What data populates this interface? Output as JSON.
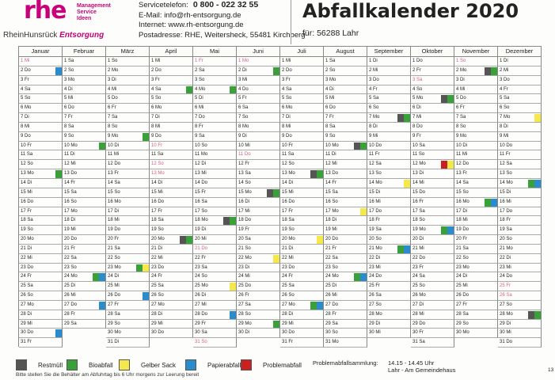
{
  "header": {
    "logo_text": "rhe",
    "logo_sub": [
      "Management",
      "Service",
      "Ideen"
    ],
    "logo_name_plain": "RheinHunsrück ",
    "logo_name_italic": "Entsorgung",
    "tel_label": "Servicetelefon:",
    "tel_number": "0 800 - 022 32 55",
    "email": "E-Mail: info@rh-entsorgung.de",
    "web": "Internet: www.rh-entsorgung.de",
    "address": "Postadresse: RHE, Weitersheck, 55481 Kirchberg",
    "title": "Abfallkalender  2020",
    "for_label": "für:  56288 Lahr"
  },
  "months": [
    {
      "name": "Januar",
      "days": [
        "1 Mi",
        "2 Do",
        "3 Fr",
        "4 Sa",
        "5 So",
        "6 Mo",
        "7 Di",
        "8 Mi",
        "9 Do",
        "10 Fr",
        "11 Sa",
        "12 So",
        "13 Mo",
        "14 Di",
        "15 Mi",
        "16 Do",
        "17 Fr",
        "18 Sa",
        "19 So",
        "20 Mo",
        "21 Di",
        "22 Mi",
        "23 Do",
        "24 Fr",
        "25 Sa",
        "26 So",
        "27 Mo",
        "28 Di",
        "29 Mi",
        "30 Do",
        "31 Fr"
      ]
    },
    {
      "name": "Februar",
      "days": [
        "1 Sa",
        "2 So",
        "3 Mo",
        "4 Di",
        "5 Mi",
        "6 Do",
        "7 Fr",
        "8 Sa",
        "9 So",
        "10 Mo",
        "11 Di",
        "12 Mi",
        "13 Do",
        "14 Fr",
        "15 Sa",
        "16 So",
        "17 Mo",
        "18 Di",
        "19 Mi",
        "20 Do",
        "21 Fr",
        "22 Sa",
        "23 So",
        "24 Mo",
        "25 Di",
        "26 Mi",
        "27 Do",
        "28 Fr",
        "29 Sa"
      ]
    },
    {
      "name": "März",
      "days": [
        "1 So",
        "2 Mo",
        "3 Di",
        "4 Mi",
        "5 Do",
        "6 Fr",
        "7 Sa",
        "8 So",
        "9 Mo",
        "10 Di",
        "11 Mi",
        "12 Do",
        "13 Fr",
        "14 Sa",
        "15 So",
        "16 Mo",
        "17 Di",
        "18 Mi",
        "19 Do",
        "20 Fr",
        "21 Sa",
        "22 So",
        "23 Mo",
        "24 Di",
        "25 Mi",
        "26 Do",
        "27 Fr",
        "28 Sa",
        "29 So",
        "30 Mo",
        "31 Di"
      ]
    },
    {
      "name": "April",
      "days": [
        "1 Mi",
        "2 Do",
        "3 Fr",
        "4 Sa",
        "5 So",
        "6 Mo",
        "7 Di",
        "8 Mi",
        "9 Do",
        "10 Fr",
        "11 Sa",
        "12 So",
        "13 Mo",
        "14 Di",
        "15 Mi",
        "16 Do",
        "17 Fr",
        "18 Sa",
        "19 So",
        "20 Mo",
        "21 Di",
        "22 Mi",
        "23 Do",
        "24 Fr",
        "25 Sa",
        "26 So",
        "27 Mo",
        "28 Di",
        "29 Mi",
        "30 Do"
      ]
    },
    {
      "name": "Mai",
      "days": [
        "1 Fr",
        "2 Sa",
        "3 So",
        "4 Mo",
        "5 Di",
        "6 Mi",
        "7 Do",
        "8 Fr",
        "9 Sa",
        "10 So",
        "11 Mo",
        "12 Di",
        "13 Mi",
        "14 Do",
        "15 Fr",
        "16 Sa",
        "17 So",
        "18 Mo",
        "19 Di",
        "20 Mi",
        "21 Do",
        "22 Fr",
        "23 Sa",
        "24 So",
        "25 Mo",
        "26 Di",
        "27 Mi",
        "28 Do",
        "29 Fr",
        "30 Sa",
        "31 So"
      ]
    },
    {
      "name": "Juni",
      "days": [
        "1 Mo",
        "2 Di",
        "3 Mi",
        "4 Do",
        "5 Fr",
        "6 Sa",
        "7 So",
        "8 Mo",
        "9 Di",
        "10 Mi",
        "11 Do",
        "12 Fr",
        "13 Sa",
        "14 So",
        "15 Mo",
        "16 Di",
        "17 Mi",
        "18 Do",
        "19 Fr",
        "20 Sa",
        "21 So",
        "22 Mo",
        "23 Di",
        "24 Mi",
        "25 Do",
        "26 Fr",
        "27 Sa",
        "28 So",
        "29 Mo",
        "30 Di"
      ]
    },
    {
      "name": "Juli",
      "days": [
        "1 Mi",
        "2 Do",
        "3 Fr",
        "4 Sa",
        "5 So",
        "6 Mo",
        "7 Di",
        "8 Mi",
        "9 Do",
        "10 Fr",
        "11 Sa",
        "12 So",
        "13 Mo",
        "14 Di",
        "15 Mi",
        "16 Do",
        "17 Fr",
        "18 Sa",
        "19 So",
        "20 Mo",
        "21 Di",
        "22 Mi",
        "23 Do",
        "24 Fr",
        "25 Sa",
        "26 So",
        "27 Mo",
        "28 Di",
        "29 Mi",
        "30 Do",
        "31 Fr"
      ]
    },
    {
      "name": "August",
      "days": [
        "1 Sa",
        "2 So",
        "3 Mo",
        "4 Di",
        "5 Mi",
        "6 Do",
        "7 Fr",
        "8 Sa",
        "9 So",
        "10 Mo",
        "11 Di",
        "12 Mi",
        "13 Do",
        "14 Fr",
        "15 Sa",
        "16 So",
        "17 Mo",
        "18 Di",
        "19 Mi",
        "20 Do",
        "21 Fr",
        "22 Sa",
        "23 So",
        "24 Mo",
        "25 Di",
        "26 Mi",
        "27 Do",
        "28 Fr",
        "29 Sa",
        "30 So",
        "31 Mo"
      ]
    },
    {
      "name": "September",
      "days": [
        "1 Di",
        "2 Mi",
        "3 Do",
        "4 Fr",
        "5 Sa",
        "6 So",
        "7 Mo",
        "8 Di",
        "9 Mi",
        "10 Do",
        "11 Fr",
        "12 Sa",
        "13 So",
        "14 Mo",
        "15 Di",
        "16 Mi",
        "17 Do",
        "18 Fr",
        "19 Sa",
        "20 So",
        "21 Mo",
        "22 Di",
        "23 Mi",
        "24 Do",
        "25 Fr",
        "26 Sa",
        "27 So",
        "28 Mo",
        "29 Di",
        "30 Mi"
      ]
    },
    {
      "name": "Oktober",
      "days": [
        "1 Do",
        "2 Fr",
        "3 Sa",
        "4 So",
        "5 Mo",
        "6 Di",
        "7 Mi",
        "8 Do",
        "9 Fr",
        "10 Sa",
        "11 So",
        "12 Mo",
        "13 Di",
        "14 Mi",
        "15 Do",
        "16 Fr",
        "17 Sa",
        "18 So",
        "19 Mo",
        "20 Di",
        "21 Mi",
        "22 Do",
        "23 Fr",
        "24 Sa",
        "25 So",
        "26 Mo",
        "27 Di",
        "28 Mi",
        "29 Do",
        "30 Fr",
        "31 Sa"
      ]
    },
    {
      "name": "November",
      "days": [
        "1 So",
        "2 Mo",
        "3 Di",
        "4 Mi",
        "5 Do",
        "6 Fr",
        "7 Sa",
        "8 So",
        "9 Mo",
        "10 Di",
        "11 Mi",
        "12 Do",
        "13 Fr",
        "14 Sa",
        "15 So",
        "16 Mo",
        "17 Di",
        "18 Mi",
        "19 Do",
        "20 Fr",
        "21 Sa",
        "22 So",
        "23 Mo",
        "24 Di",
        "25 Mi",
        "26 Do",
        "27 Fr",
        "28 Sa",
        "29 So",
        "30 Mo"
      ]
    },
    {
      "name": "Dezember",
      "days": [
        "1 Di",
        "2 Mi",
        "3 Do",
        "4 Fr",
        "5 Sa",
        "6 So",
        "7 Mo",
        "8 Di",
        "9 Mi",
        "10 Do",
        "11 Fr",
        "12 Sa",
        "13 So",
        "14 Mo",
        "15 Di",
        "16 Mi",
        "17 Do",
        "18 Fr",
        "19 Sa",
        "20 So",
        "21 Mo",
        "22 Di",
        "23 Mi",
        "24 Do",
        "25 Fr",
        "26 Sa",
        "27 So",
        "28 Mo",
        "29 Di",
        "30 Mi",
        "31 Do"
      ]
    }
  ],
  "holidays": [
    {
      "month": 0,
      "day": 1
    },
    {
      "month": 3,
      "day": 10
    },
    {
      "month": 3,
      "day": 12
    },
    {
      "month": 3,
      "day": 13
    },
    {
      "month": 4,
      "day": 1
    },
    {
      "month": 4,
      "day": 21
    },
    {
      "month": 4,
      "day": 31
    },
    {
      "month": 5,
      "day": 1
    },
    {
      "month": 5,
      "day": 11
    },
    {
      "month": 9,
      "day": 3
    },
    {
      "month": 10,
      "day": 1
    },
    {
      "month": 11,
      "day": 25
    },
    {
      "month": 11,
      "day": 26
    }
  ],
  "collections": [
    {
      "month": 0,
      "day": 2,
      "type": "blue"
    },
    {
      "month": 0,
      "day": 13,
      "type": "green"
    },
    {
      "month": 0,
      "day": 30,
      "type": "blue"
    },
    {
      "month": 1,
      "day": 10,
      "type": "green"
    },
    {
      "month": 1,
      "day": 24,
      "type": "green"
    },
    {
      "month": 1,
      "day": 24,
      "type": "blue"
    },
    {
      "month": 1,
      "day": 27,
      "type": "blue"
    },
    {
      "month": 2,
      "day": 9,
      "type": "green"
    },
    {
      "month": 2,
      "day": 23,
      "type": "green"
    },
    {
      "month": 2,
      "day": 23,
      "type": "yellow"
    },
    {
      "month": 2,
      "day": 26,
      "type": "blue"
    },
    {
      "month": 3,
      "day": 4,
      "type": "green"
    },
    {
      "month": 3,
      "day": 20,
      "type": "black"
    },
    {
      "month": 3,
      "day": 20,
      "type": "green"
    },
    {
      "month": 4,
      "day": 4,
      "type": "green"
    },
    {
      "month": 4,
      "day": 18,
      "type": "black"
    },
    {
      "month": 4,
      "day": 18,
      "type": "green"
    },
    {
      "month": 4,
      "day": 25,
      "type": "yellow"
    },
    {
      "month": 4,
      "day": 28,
      "type": "blue"
    },
    {
      "month": 5,
      "day": 2,
      "type": "green"
    },
    {
      "month": 5,
      "day": 15,
      "type": "black"
    },
    {
      "month": 5,
      "day": 15,
      "type": "green"
    },
    {
      "month": 5,
      "day": 22,
      "type": "yellow"
    },
    {
      "month": 5,
      "day": 29,
      "type": "green"
    },
    {
      "month": 6,
      "day": 13,
      "type": "black"
    },
    {
      "month": 6,
      "day": 13,
      "type": "green"
    },
    {
      "month": 6,
      "day": 20,
      "type": "yellow"
    },
    {
      "month": 6,
      "day": 27,
      "type": "green"
    },
    {
      "month": 6,
      "day": 27,
      "type": "blue"
    },
    {
      "month": 7,
      "day": 10,
      "type": "black"
    },
    {
      "month": 7,
      "day": 10,
      "type": "green"
    },
    {
      "month": 7,
      "day": 17,
      "type": "yellow"
    },
    {
      "month": 7,
      "day": 24,
      "type": "green"
    },
    {
      "month": 7,
      "day": 24,
      "type": "blue"
    },
    {
      "month": 8,
      "day": 7,
      "type": "black"
    },
    {
      "month": 8,
      "day": 7,
      "type": "green"
    },
    {
      "month": 8,
      "day": 14,
      "type": "yellow"
    },
    {
      "month": 8,
      "day": 21,
      "type": "green"
    },
    {
      "month": 8,
      "day": 21,
      "type": "blue"
    },
    {
      "month": 9,
      "day": 5,
      "type": "black"
    },
    {
      "month": 9,
      "day": 5,
      "type": "green"
    },
    {
      "month": 9,
      "day": 12,
      "type": "red"
    },
    {
      "month": 9,
      "day": 12,
      "type": "yellow"
    },
    {
      "month": 9,
      "day": 19,
      "type": "green"
    },
    {
      "month": 9,
      "day": 19,
      "type": "blue"
    },
    {
      "month": 10,
      "day": 2,
      "type": "black"
    },
    {
      "month": 10,
      "day": 2,
      "type": "green"
    },
    {
      "month": 10,
      "day": 16,
      "type": "green"
    },
    {
      "month": 10,
      "day": 16,
      "type": "blue"
    },
    {
      "month": 11,
      "day": 7,
      "type": "yellow"
    },
    {
      "month": 11,
      "day": 14,
      "type": "green"
    },
    {
      "month": 11,
      "day": 14,
      "type": "blue"
    },
    {
      "month": 11,
      "day": 28,
      "type": "black"
    },
    {
      "month": 11,
      "day": 28,
      "type": "green"
    }
  ],
  "legend": [
    {
      "type": "black",
      "label": "Restmüll"
    },
    {
      "type": "green",
      "label": "Bioabfall"
    },
    {
      "type": "yellow",
      "label": "Gelber Sack"
    },
    {
      "type": "blue",
      "label": "Papierabfall"
    },
    {
      "type": "red",
      "label": "Problemabfall"
    }
  ],
  "problem_label": "Problemabfallsammlung:",
  "problem_time": "14.15 - 14.45 Uhr",
  "problem_place": "Lahr - Am Gemeindehaus",
  "footer": "Bitte stellen Sie die Behälter am Abfuhrtag bis 6 Uhr morgens zur Leerung bereit",
  "page_number": "13"
}
